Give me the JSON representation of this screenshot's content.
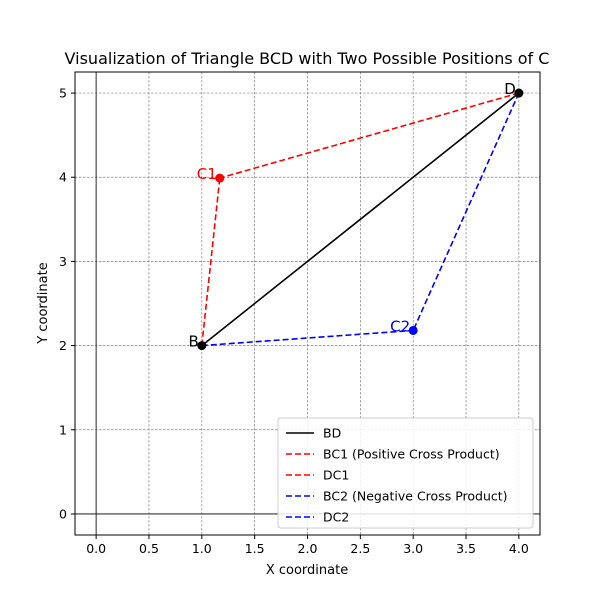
{
  "chart_data": {
    "type": "line",
    "title": "Visualization of Triangle BCD with Two Possible Positions of C",
    "xlabel": "X coordinate",
    "ylabel": "Y coordinate",
    "xlim": [
      -0.2,
      4.2
    ],
    "ylim": [
      -0.25,
      5.25
    ],
    "xticks": [
      "0.0",
      "0.5",
      "1.0",
      "1.5",
      "2.0",
      "2.5",
      "3.0",
      "3.5",
      "4.0"
    ],
    "yticks": [
      "0",
      "1",
      "2",
      "3",
      "4",
      "5"
    ],
    "grid": true,
    "legend_position": "lower right",
    "points": [
      {
        "label": "B",
        "x": 1.0,
        "y": 2.0,
        "color": "#000000"
      },
      {
        "label": "D",
        "x": 4.0,
        "y": 5.0,
        "color": "#000000"
      },
      {
        "label": "C1",
        "x": 1.17,
        "y": 3.99,
        "color": "#ff0000"
      },
      {
        "label": "C2",
        "x": 3.0,
        "y": 2.18,
        "color": "#0000ff"
      }
    ],
    "series": [
      {
        "name": "BD",
        "x": [
          1.0,
          4.0
        ],
        "y": [
          2.0,
          5.0
        ],
        "color": "#000000",
        "style": "solid"
      },
      {
        "name": "BC1 (Positive Cross Product)",
        "x": [
          1.0,
          1.17
        ],
        "y": [
          2.0,
          3.99
        ],
        "color": "#ff0000",
        "style": "dashed"
      },
      {
        "name": "DC1",
        "x": [
          4.0,
          1.17
        ],
        "y": [
          5.0,
          3.99
        ],
        "color": "#ff0000",
        "style": "dashed"
      },
      {
        "name": "BC2 (Negative Cross Product)",
        "x": [
          1.0,
          3.0
        ],
        "y": [
          2.0,
          2.18
        ],
        "color": "#0000ff",
        "style": "dashed"
      },
      {
        "name": "DC2",
        "x": [
          4.0,
          3.0
        ],
        "y": [
          5.0,
          2.18
        ],
        "color": "#0000ff",
        "style": "dashed"
      }
    ]
  }
}
